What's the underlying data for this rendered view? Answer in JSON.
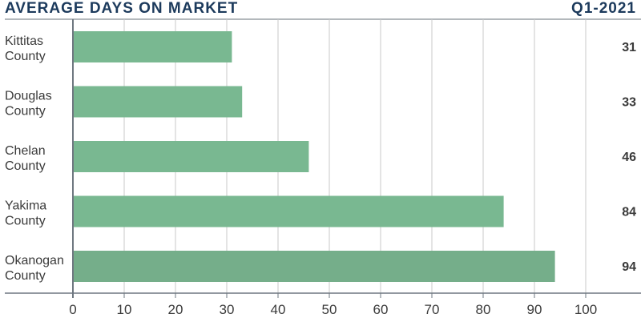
{
  "header": {
    "title": "AVERAGE DAYS ON MARKET",
    "period": "Q1-2021"
  },
  "colors": {
    "title": "#1c3a5c",
    "bar": "#79b891",
    "bar_last": "#75ae8a",
    "grid": "#c8c8c8",
    "axis": "#6e7780",
    "text": "#3a3a3a"
  },
  "chart_data": {
    "type": "bar",
    "orientation": "horizontal",
    "title": "AVERAGE DAYS ON MARKET",
    "subtitle": "Q1-2021",
    "categories": [
      [
        "Kittitas",
        "County"
      ],
      [
        "Douglas",
        "County"
      ],
      [
        "Chelan",
        "County"
      ],
      [
        "Yakima",
        "County"
      ],
      [
        "Okanogan",
        "County"
      ]
    ],
    "values": [
      31,
      33,
      46,
      84,
      94
    ],
    "data_labels": [
      "31",
      "33",
      "46",
      "84",
      "94"
    ],
    "xlim": [
      0,
      100
    ],
    "xticks": [
      "0",
      "10",
      "20",
      "30",
      "40",
      "50",
      "60",
      "70",
      "80",
      "90",
      "100"
    ],
    "grid": true,
    "legend": "none"
  }
}
